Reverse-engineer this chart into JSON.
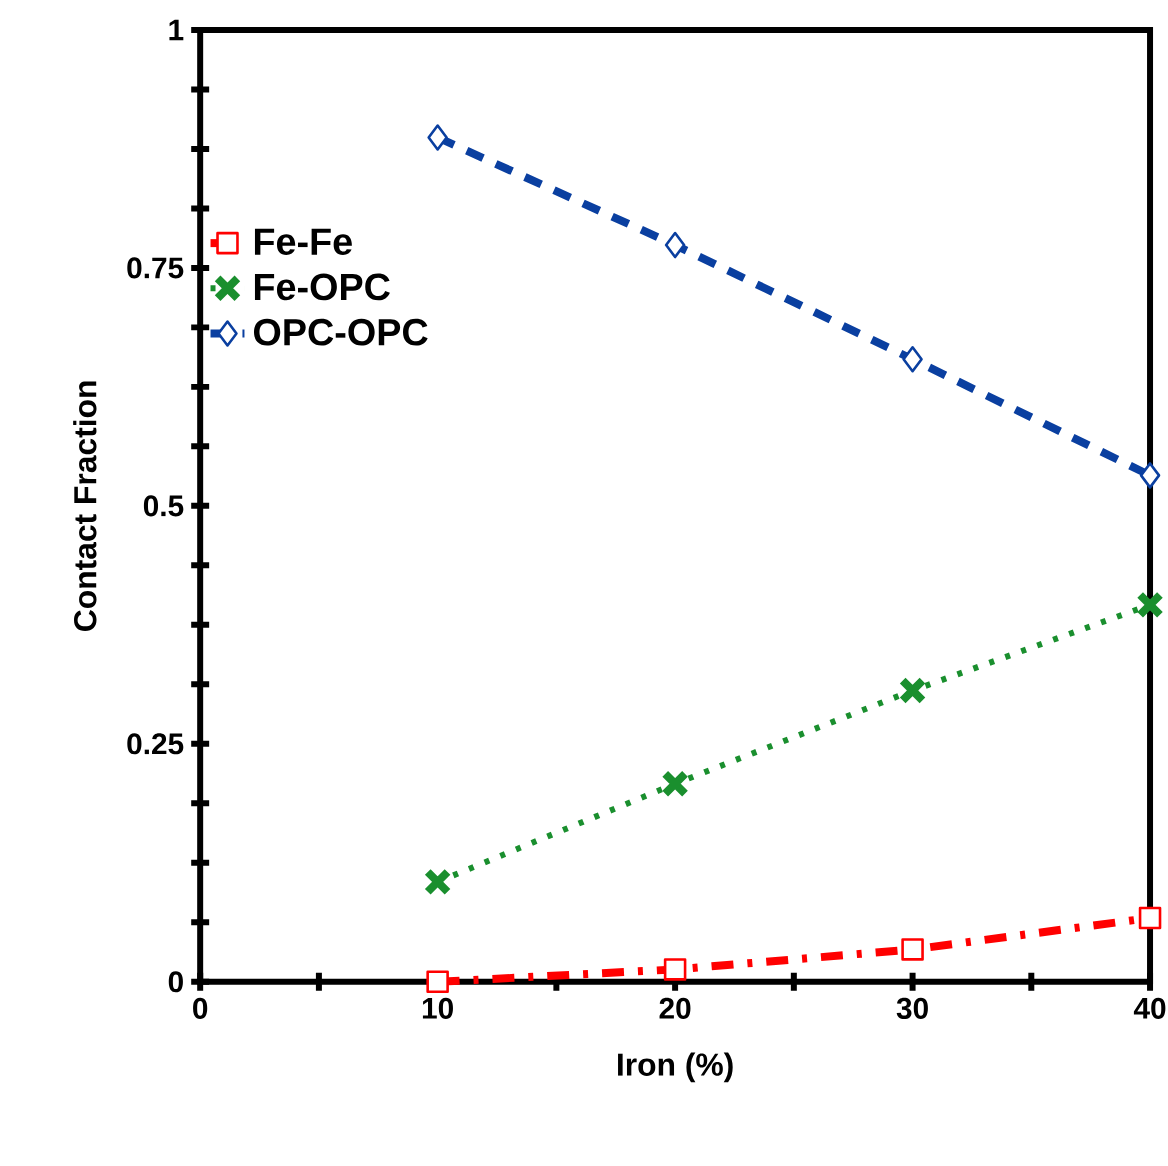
{
  "chart_data": {
    "type": "line",
    "xlabel": "Iron (%)",
    "ylabel": "Contact Fraction",
    "x": [
      10,
      20,
      30,
      40
    ],
    "series": [
      {
        "name": "Fe-Fe",
        "color": "#ff0000",
        "marker": "square",
        "line_style": "dashdot",
        "values": [
          0.0,
          0.013,
          0.034,
          0.067
        ]
      },
      {
        "name": "Fe-OPC",
        "color": "#1a8f2e",
        "marker": "cross",
        "line_style": "dotted",
        "values": [
          0.105,
          0.208,
          0.306,
          0.396
        ]
      },
      {
        "name": "OPC-OPC",
        "color": "#0a3fa0",
        "marker": "diamond",
        "line_style": "dashed",
        "values": [
          0.887,
          0.774,
          0.654,
          0.532
        ]
      }
    ],
    "xlim": [
      0,
      40
    ],
    "ylim": [
      0,
      1
    ],
    "xticks": [
      0,
      {
        "value": 5,
        "label": null
      },
      10,
      {
        "value": 15,
        "label": null
      },
      20,
      {
        "value": 25,
        "label": null
      },
      30,
      {
        "value": 35,
        "label": null
      },
      40
    ],
    "yticks": [
      0,
      {
        "value": 0.0625,
        "label": null
      },
      {
        "value": 0.125,
        "label": null
      },
      {
        "value": 0.1875,
        "label": null
      },
      0.25,
      {
        "value": 0.3125,
        "label": null
      },
      {
        "value": 0.375,
        "label": null
      },
      {
        "value": 0.4375,
        "label": null
      },
      0.5,
      {
        "value": 0.5625,
        "label": null
      },
      {
        "value": 0.625,
        "label": null
      },
      {
        "value": 0.6875,
        "label": null
      },
      0.75,
      {
        "value": 0.8125,
        "label": null
      },
      {
        "value": 0.875,
        "label": null
      },
      {
        "value": 0.9375,
        "label": null
      },
      1
    ],
    "grid": false,
    "legend": "top left"
  }
}
